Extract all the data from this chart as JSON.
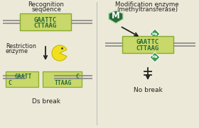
{
  "bg_color": "#ece9d8",
  "dna_box_color": "#c8d86a",
  "dna_box_edge": "#8aaa30",
  "dark_green": "#2a6b3a",
  "mid_green": "#3a9a50",
  "arrow_color": "#222222",
  "pacman_color": "#f0e020",
  "pacman_edge": "#c8b800",
  "strand_color": "#888888",
  "text_color": "#222222",
  "seq_top": "GAATTC",
  "seq_bot": "CTTAAG",
  "title_left_1": "Recognition",
  "title_left_2": "sequence",
  "title_right_1": "Modification enzyme",
  "title_right_2": "(methyltransferase)",
  "label_restriction": "Restriction",
  "label_enzyme": "enzyme",
  "label_ds": "Ds break",
  "label_no": "No break",
  "me_label": "Me"
}
